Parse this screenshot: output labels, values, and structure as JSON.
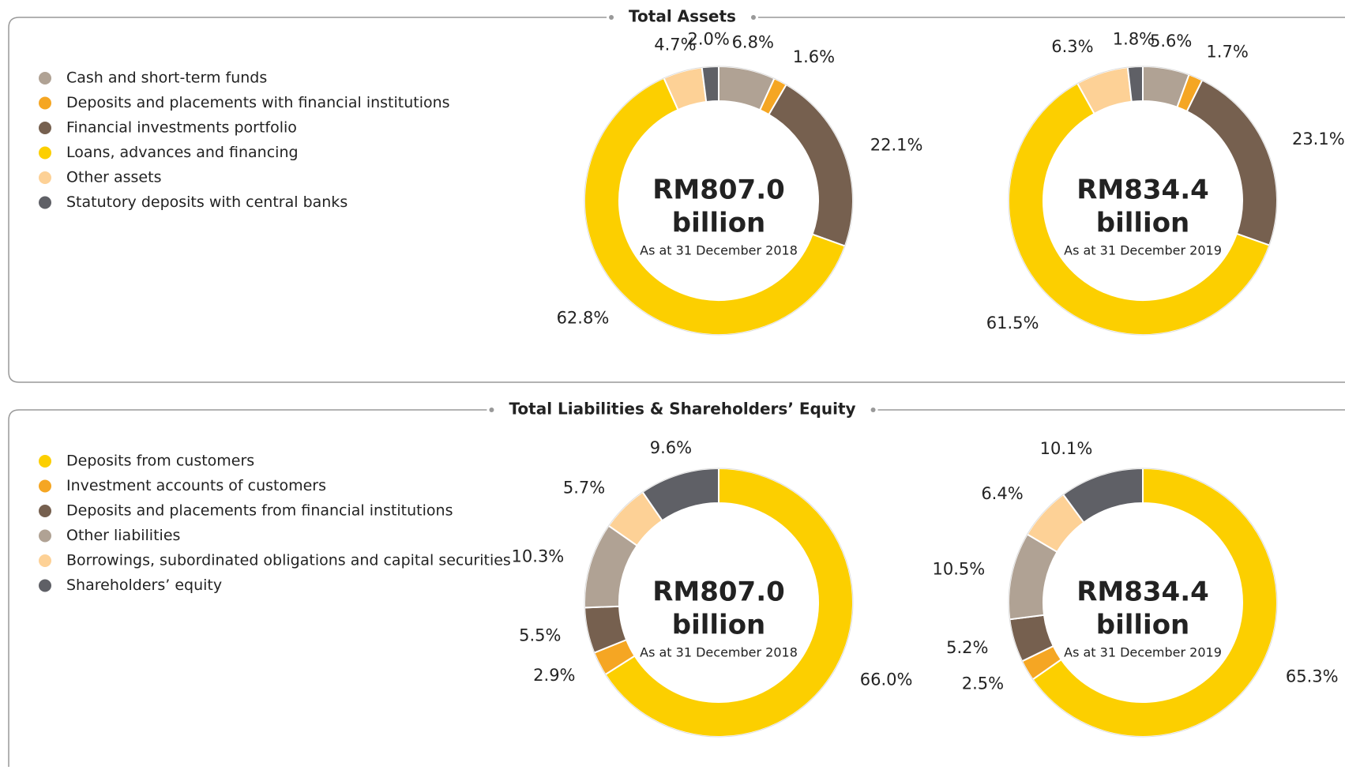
{
  "chart_data": [
    {
      "type": "donut",
      "title": "Total Assets",
      "categories": [
        "Cash and short-term funds",
        "Deposits and placements with financial institutions",
        "Financial investments portfolio",
        "Loans, advances and financing",
        "Other assets",
        "Statutory deposits with central banks"
      ],
      "colors": [
        "#b0a294",
        "#f5a623",
        "#76604f",
        "#fccf00",
        "#fdd196",
        "#5f6066"
      ],
      "series": [
        {
          "label": "RM807.0",
          "unit": "billion",
          "subtitle": "As at 31 December 2018",
          "values": [
            6.8,
            1.6,
            22.1,
            62.8,
            4.7,
            2.0
          ],
          "value_labels": [
            "6.8%",
            "1.6%",
            "22.1%",
            "62.8%",
            "4.7%",
            "2.0%"
          ]
        },
        {
          "label": "RM834.4",
          "unit": "billion",
          "subtitle": "As at 31 December 2019",
          "values": [
            5.6,
            1.7,
            23.1,
            61.5,
            6.3,
            1.8
          ],
          "value_labels": [
            "5.6%",
            "1.7%",
            "23.1%",
            "61.5%",
            "6.3%",
            "1.8%"
          ]
        }
      ]
    },
    {
      "type": "donut",
      "title": "Total Liabilities & Shareholders’ Equity",
      "categories": [
        "Deposits from customers",
        "Investment accounts of customers",
        "Deposits and placements from financial institutions",
        "Other liabilities",
        "Borrowings, subordinated obligations and capital securities",
        "Shareholders’ equity"
      ],
      "colors": [
        "#fccf00",
        "#f5a623",
        "#76604f",
        "#b0a294",
        "#fdd196",
        "#5f6066"
      ],
      "series": [
        {
          "label": "RM807.0",
          "unit": "billion",
          "subtitle": "As at 31 December 2018",
          "values": [
            66.0,
            2.9,
            5.5,
            10.3,
            5.7,
            9.6
          ],
          "value_labels": [
            "66.0%",
            "2.9%",
            "5.5%",
            "10.3%",
            "5.7%",
            "9.6%"
          ]
        },
        {
          "label": "RM834.4",
          "unit": "billion",
          "subtitle": "As at 31 December 2019",
          "values": [
            65.3,
            2.5,
            5.2,
            10.5,
            6.4,
            10.1
          ],
          "value_labels": [
            "65.3%",
            "2.5%",
            "5.2%",
            "10.5%",
            "6.4%",
            "10.1%"
          ]
        }
      ]
    }
  ]
}
